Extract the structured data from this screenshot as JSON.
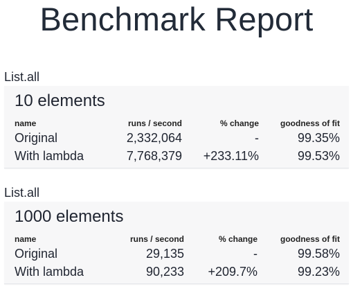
{
  "title": "Benchmark Report",
  "groups": [
    {
      "label": "List.all",
      "card_title": "10 elements",
      "headers": {
        "name": "name",
        "runs": "runs / second",
        "change": "% change",
        "fit": "goodness of fit"
      },
      "rows": [
        {
          "name": "Original",
          "runs": "2,332,064",
          "change": "-",
          "fit": "99.35%"
        },
        {
          "name": "With lambda",
          "runs": "7,768,379",
          "change": "+233.11%",
          "fit": "99.53%"
        }
      ]
    },
    {
      "label": "List.all",
      "card_title": "1000 elements",
      "headers": {
        "name": "name",
        "runs": "runs / second",
        "change": "% change",
        "fit": "goodness of fit"
      },
      "rows": [
        {
          "name": "Original",
          "runs": "29,135",
          "change": "-",
          "fit": "99.58%"
        },
        {
          "name": "With lambda",
          "runs": "90,233",
          "change": "+209.7%",
          "fit": "99.23%"
        }
      ]
    }
  ]
}
